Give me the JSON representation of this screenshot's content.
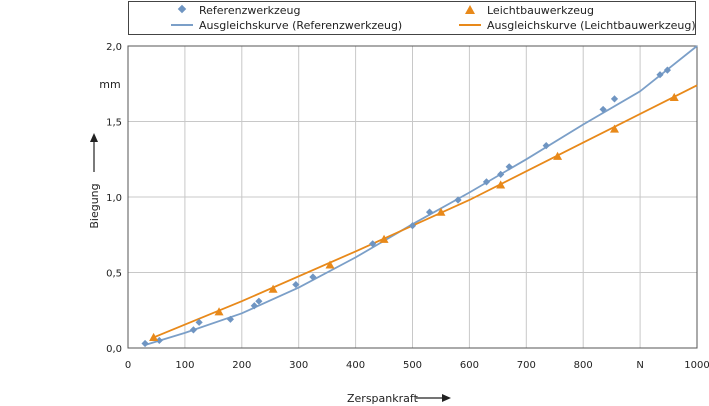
{
  "chart_data": {
    "type": "scatter",
    "xlabel": "Zerspankraft",
    "ylabel": "Biegung",
    "yunit": "mm",
    "xunit": "N",
    "xlim": [
      0,
      1000
    ],
    "ylim": [
      0,
      2.0
    ],
    "x_ticks": [
      "0",
      "100",
      "200",
      "300",
      "400",
      "500",
      "600",
      "700",
      "800",
      "N",
      "1000"
    ],
    "y_ticks": [
      "0,0",
      "0,5",
      "1,0",
      "1,5",
      "2,0"
    ],
    "y_tick_values": [
      0,
      0.5,
      1.0,
      1.5,
      2.0
    ],
    "grid": true,
    "legend_position": "top",
    "series": [
      {
        "name": "Referenzwerkzeug",
        "kind": "points",
        "marker": "diamond",
        "color": "#6f95c2",
        "x": [
          30,
          55,
          115,
          125,
          180,
          222,
          230,
          295,
          325,
          430,
          500,
          530,
          580,
          630,
          655,
          670,
          735,
          835,
          855,
          935,
          948
        ],
        "y": [
          0.03,
          0.05,
          0.12,
          0.17,
          0.19,
          0.28,
          0.31,
          0.42,
          0.47,
          0.69,
          0.81,
          0.9,
          0.98,
          1.1,
          1.15,
          1.2,
          1.34,
          1.58,
          1.65,
          1.81,
          1.84
        ]
      },
      {
        "name": "Leichtbauwerkzeug",
        "kind": "points",
        "marker": "triangle",
        "color": "#e8891a",
        "x": [
          45,
          160,
          255,
          355,
          450,
          550,
          655,
          755,
          855,
          960
        ],
        "y": [
          0.07,
          0.24,
          0.39,
          0.55,
          0.72,
          0.9,
          1.08,
          1.27,
          1.45,
          1.66
        ]
      },
      {
        "name": "Ausgleichskurve (Referenzwerkzeug)",
        "kind": "line",
        "color": "#7b9fc8",
        "x": [
          30,
          100,
          200,
          300,
          400,
          500,
          600,
          700,
          800,
          900,
          1000
        ],
        "y": [
          0.02,
          0.1,
          0.23,
          0.4,
          0.6,
          0.82,
          1.03,
          1.25,
          1.48,
          1.7,
          2.0
        ]
      },
      {
        "name": "Ausgleichskurve (Leichtbauwerkzeug)",
        "kind": "line",
        "color": "#e8891a",
        "x": [
          45,
          200,
          400,
          600,
          800,
          1000
        ],
        "y": [
          0.07,
          0.31,
          0.64,
          0.98,
          1.36,
          1.74
        ]
      }
    ]
  }
}
